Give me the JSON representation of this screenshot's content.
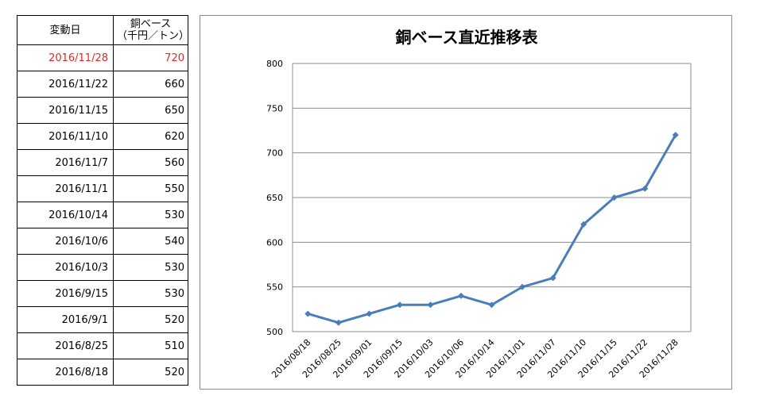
{
  "table": {
    "header": {
      "date": "変動日",
      "price_line1": "銅ベース",
      "price_line2": "（千円／トン）"
    },
    "rows": [
      {
        "date": "2016/11/28",
        "value": "720"
      },
      {
        "date": "2016/11/22",
        "value": "660"
      },
      {
        "date": "2016/11/15",
        "value": "650"
      },
      {
        "date": "2016/11/10",
        "value": "620"
      },
      {
        "date": "2016/11/7",
        "value": "560"
      },
      {
        "date": "2016/11/1",
        "value": "550"
      },
      {
        "date": "2016/10/14",
        "value": "530"
      },
      {
        "date": "2016/10/6",
        "value": "540"
      },
      {
        "date": "2016/10/3",
        "value": "530"
      },
      {
        "date": "2016/9/15",
        "value": "530"
      },
      {
        "date": "2016/9/1",
        "value": "520"
      },
      {
        "date": "2016/8/25",
        "value": "510"
      },
      {
        "date": "2016/8/18",
        "value": "520"
      }
    ],
    "highlight_color": "#e3262a"
  },
  "chart_data": {
    "type": "line",
    "title": "銅ベース直近推移表",
    "xlabel": "",
    "ylabel": "",
    "categories": [
      "2016/08/18",
      "2016/08/25",
      "2016/09/01",
      "2016/09/15",
      "2016/10/03",
      "2016/10/06",
      "2016/10/14",
      "2016/11/01",
      "2016/11/07",
      "2016/11/10",
      "2016/11/15",
      "2016/11/22",
      "2016/11/28"
    ],
    "series": [
      {
        "values": [
          520,
          510,
          520,
          530,
          530,
          540,
          530,
          550,
          560,
          620,
          650,
          660,
          720
        ]
      }
    ],
    "ylim": [
      500,
      800
    ],
    "yticks": [
      500,
      550,
      600,
      650,
      700,
      750,
      800
    ],
    "grid": true,
    "legend": "none",
    "line_color": "#4a7ebb"
  }
}
